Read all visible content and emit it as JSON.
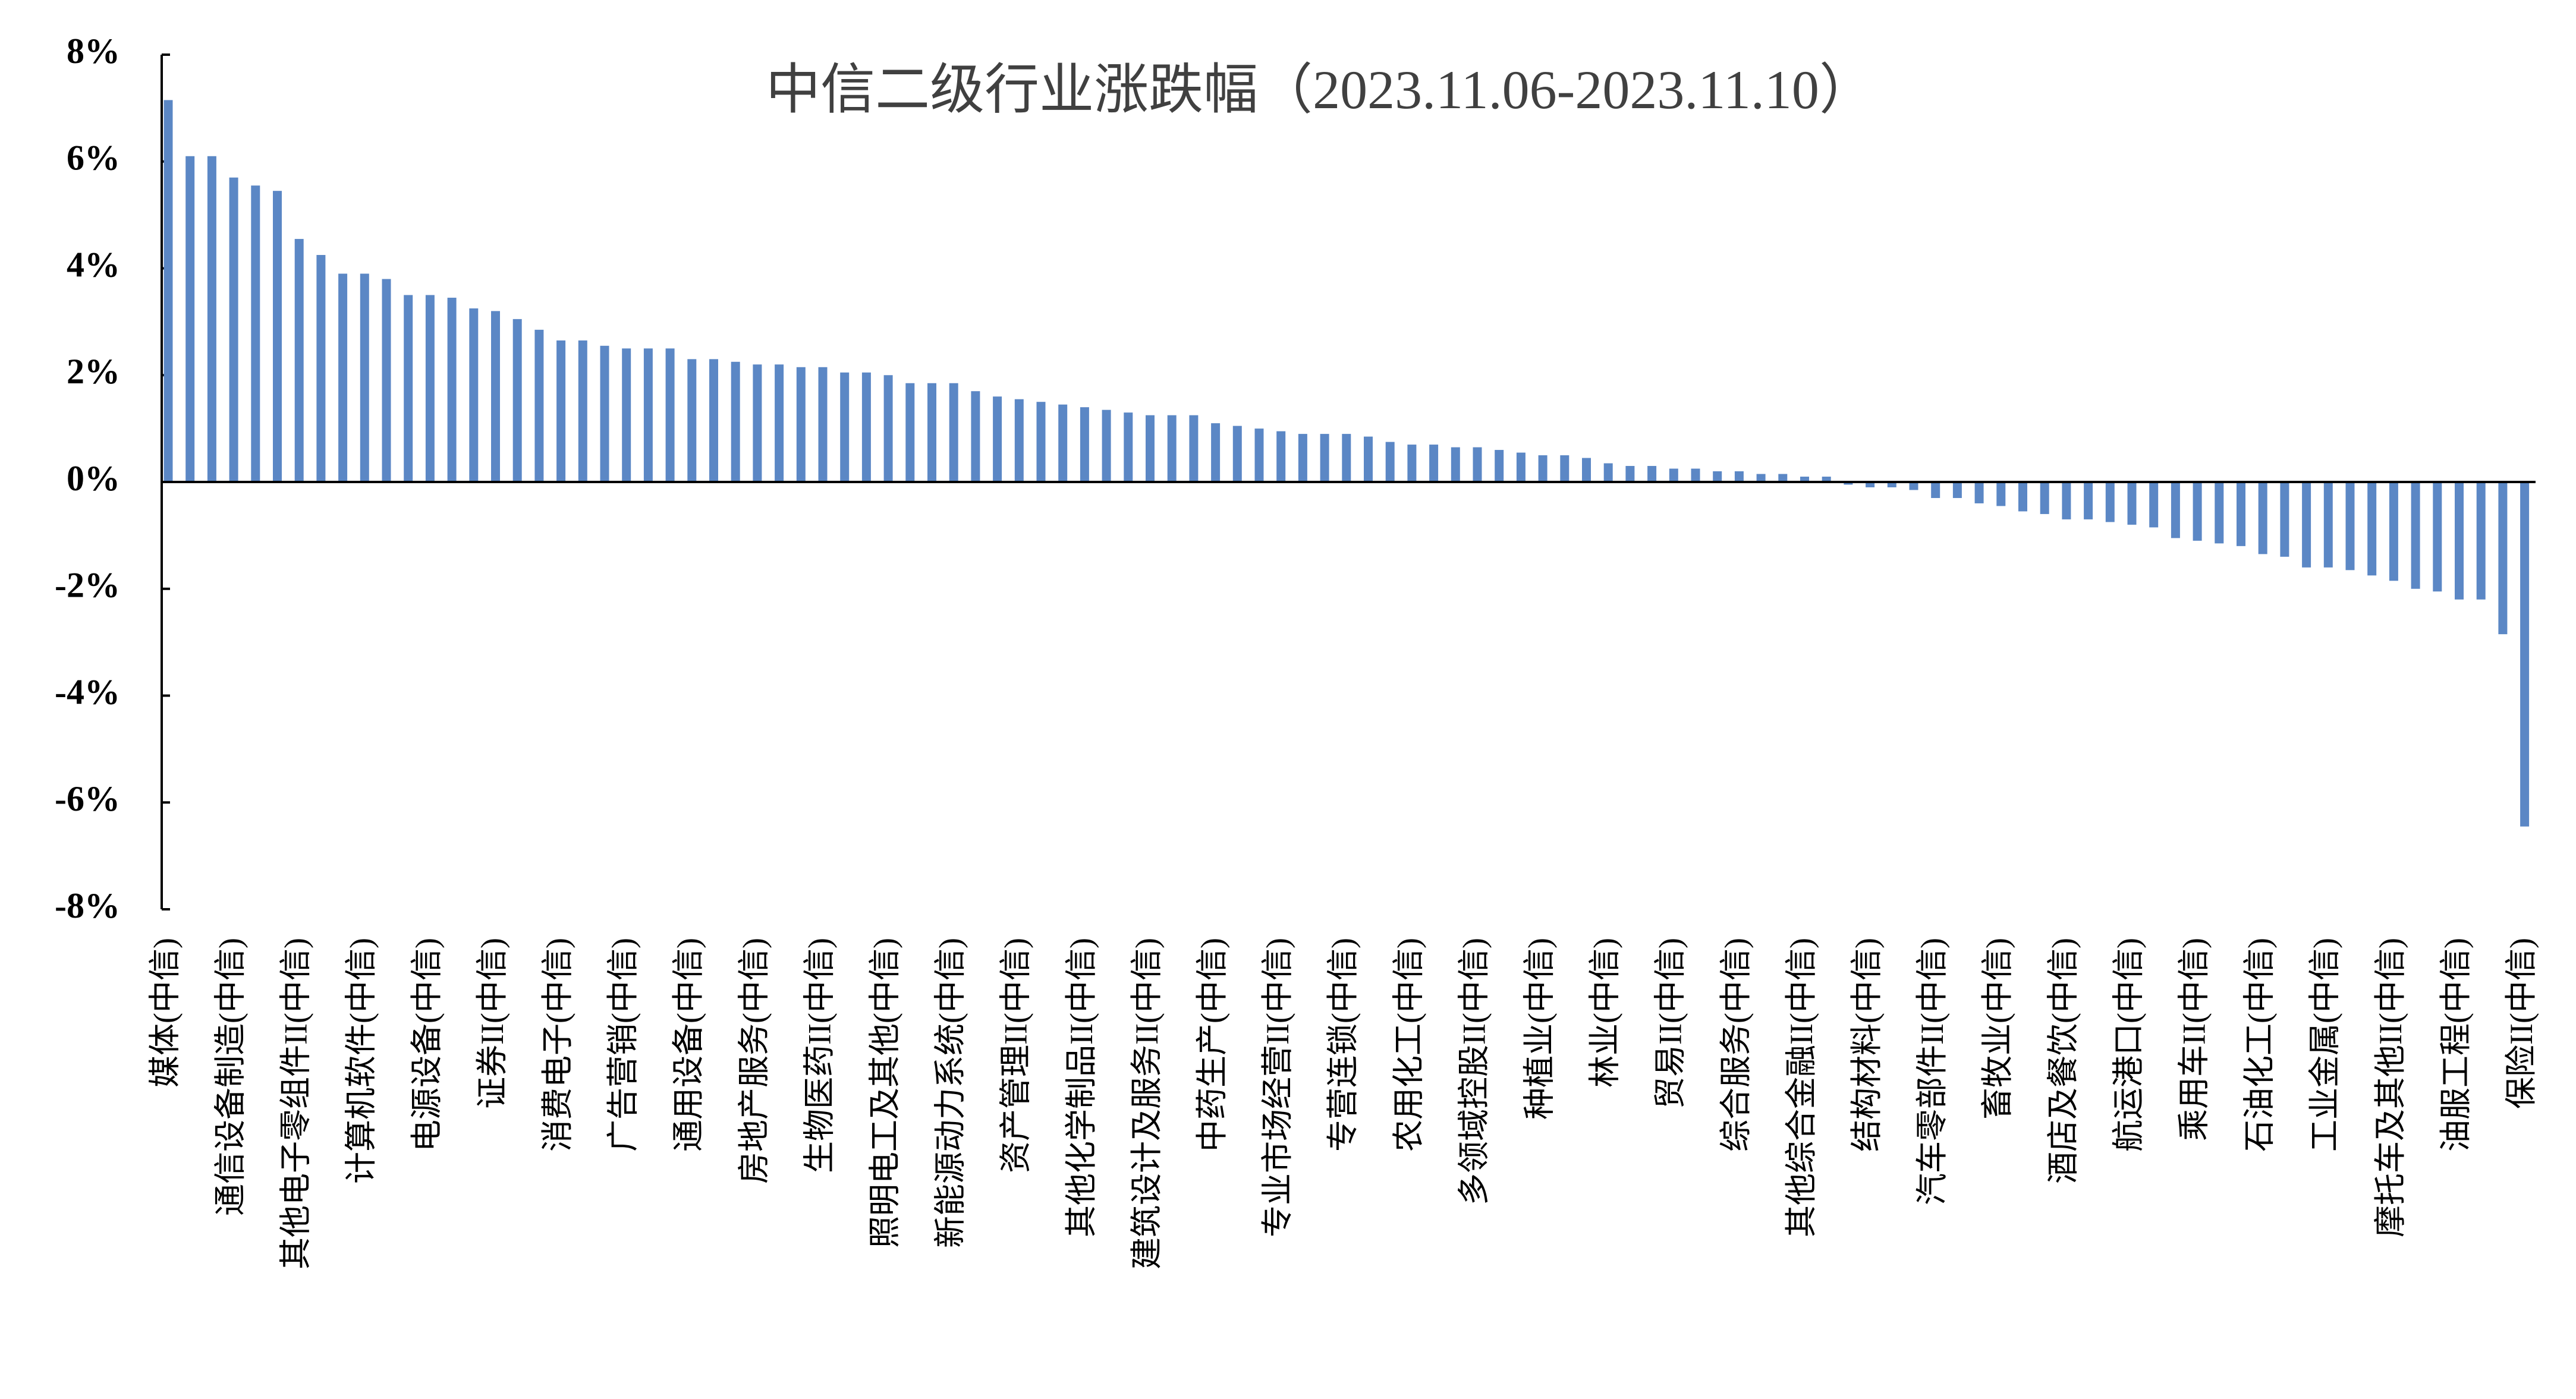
{
  "chart_data": {
    "type": "bar",
    "title": "中信二级行业涨跌幅（2023.11.06-2023.11.10）",
    "color": "#5b87c5",
    "categories": [
      "媒体(中信)",
      null,
      null,
      "通信设备制造(中信)",
      null,
      null,
      "其他电子零组件II(中信)",
      null,
      null,
      "计算机软件(中信)",
      null,
      null,
      "电源设备(中信)",
      null,
      null,
      "证券II(中信)",
      null,
      null,
      "消费电子(中信)",
      null,
      null,
      "广告营销(中信)",
      null,
      null,
      "通用设备(中信)",
      null,
      null,
      "房地产服务(中信)",
      null,
      null,
      "生物医药II(中信)",
      null,
      null,
      "照明电工及其他(中信)",
      null,
      null,
      "新能源动力系统(中信)",
      null,
      null,
      "资产管理II(中信)",
      null,
      null,
      "其他化学制品II(中信)",
      null,
      null,
      "建筑设计及服务II(中信)",
      null,
      null,
      "中药生产(中信)",
      null,
      null,
      "专业市场经营II(中信)",
      null,
      null,
      "专营连锁(中信)",
      null,
      null,
      "农用化工(中信)",
      null,
      null,
      "多领域控股II(中信)",
      null,
      null,
      "种植业(中信)",
      null,
      null,
      "林业(中信)",
      null,
      null,
      "贸易II(中信)",
      null,
      null,
      "综合服务(中信)",
      null,
      null,
      "其他综合金融II(中信)",
      null,
      null,
      "结构材料(中信)",
      null,
      null,
      "汽车零部件II(中信)",
      null,
      null,
      "畜牧业(中信)",
      null,
      null,
      "酒店及餐饮(中信)",
      null,
      null,
      "航运港口(中信)",
      null,
      null,
      "乘用车II(中信)",
      null,
      null,
      "石油化工(中信)",
      null,
      null,
      "工业金属(中信)",
      null,
      null,
      "摩托车及其他II(中信)",
      null,
      null,
      "油服工程(中信)",
      null,
      null,
      "保险II(中信)"
    ],
    "values": [
      7.15,
      6.1,
      6.1,
      5.7,
      5.55,
      5.45,
      4.55,
      4.25,
      3.9,
      3.9,
      3.8,
      3.5,
      3.5,
      3.45,
      3.25,
      3.2,
      3.05,
      2.85,
      2.65,
      2.65,
      2.55,
      2.5,
      2.5,
      2.5,
      2.3,
      2.3,
      2.25,
      2.2,
      2.2,
      2.15,
      2.15,
      2.05,
      2.05,
      2.0,
      1.85,
      1.85,
      1.85,
      1.7,
      1.6,
      1.55,
      1.5,
      1.45,
      1.4,
      1.35,
      1.3,
      1.25,
      1.25,
      1.25,
      1.1,
      1.05,
      1.0,
      0.95,
      0.9,
      0.9,
      0.9,
      0.85,
      0.75,
      0.7,
      0.7,
      0.65,
      0.65,
      0.6,
      0.55,
      0.5,
      0.5,
      0.45,
      0.35,
      0.3,
      0.3,
      0.25,
      0.25,
      0.2,
      0.2,
      0.15,
      0.15,
      0.1,
      0.1,
      -0.05,
      -0.1,
      -0.1,
      -0.15,
      -0.3,
      -0.3,
      -0.4,
      -0.45,
      -0.55,
      -0.6,
      -0.7,
      -0.7,
      -0.75,
      -0.8,
      -0.85,
      -1.05,
      -1.1,
      -1.15,
      -1.2,
      -1.35,
      -1.4,
      -1.6,
      -1.6,
      -1.65,
      -1.75,
      -1.85,
      -2.0,
      -2.05,
      -2.2,
      -2.2,
      -2.85,
      -6.45
    ],
    "ylim": [
      -8,
      8
    ],
    "yticks": [
      {
        "value": -8,
        "label": "-8%"
      },
      {
        "value": -6,
        "label": "-6%"
      },
      {
        "value": -4,
        "label": "-4%"
      },
      {
        "value": -2,
        "label": "-2%"
      },
      {
        "value": 0,
        "label": "0%"
      },
      {
        "value": 2,
        "label": "2%"
      },
      {
        "value": 4,
        "label": "4%"
      },
      {
        "value": 6,
        "label": "6%"
      },
      {
        "value": 8,
        "label": "8%"
      }
    ],
    "grid": false
  }
}
